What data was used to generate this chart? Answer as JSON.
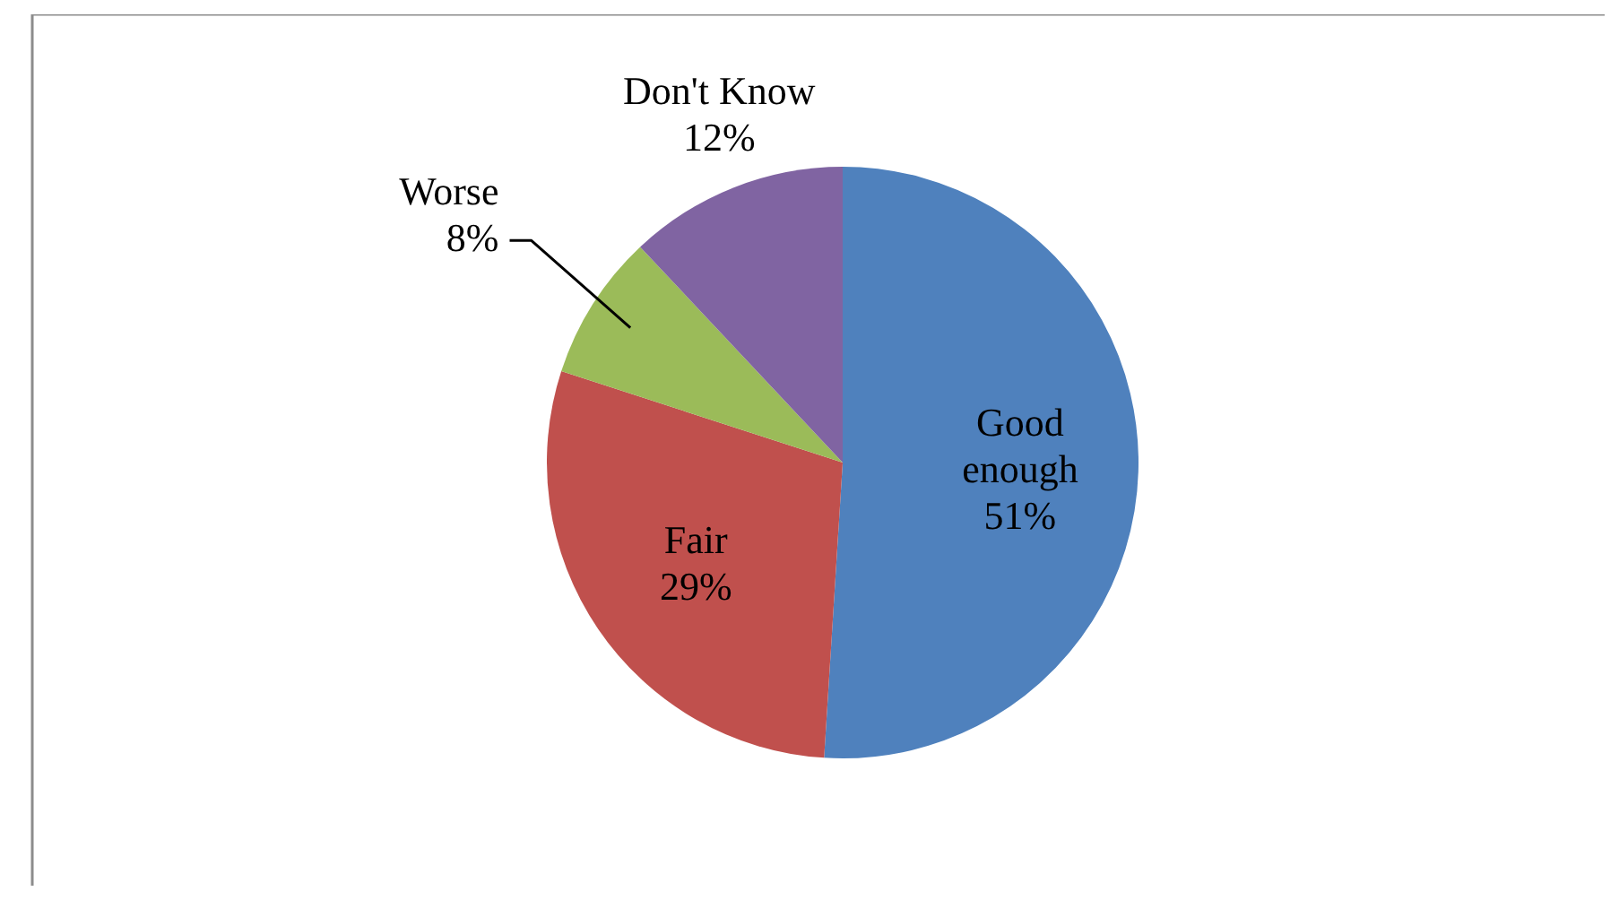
{
  "chart_data": {
    "type": "pie",
    "categories": [
      "Good enough",
      "Fair",
      "Worse",
      "Don't Know"
    ],
    "values": [
      51,
      29,
      8,
      12
    ],
    "colors": [
      "#4f81bd",
      "#c0504d",
      "#9bbb59",
      "#8064a2"
    ],
    "value_labels": [
      "51%",
      "29%",
      "8%",
      "12%"
    ]
  }
}
